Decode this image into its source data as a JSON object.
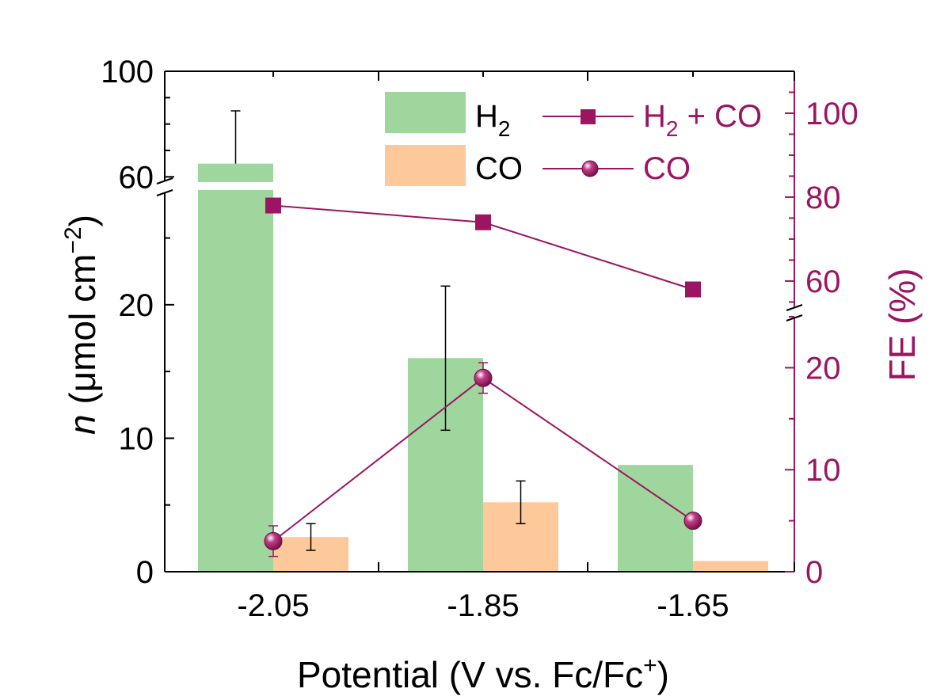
{
  "chart_data": {
    "type": "bar",
    "categories": [
      "-2.05",
      "-1.85",
      "-1.65"
    ],
    "xlabel": "Potential (V vs. Fc/Fc⁺)",
    "ylabel": "n (μmol cm⁻²)",
    "y2label": "FE (%)",
    "ylim": [
      0,
      100
    ],
    "ybreak": [
      28,
      58
    ],
    "y_ticks": [
      "0",
      "10",
      "20",
      "60",
      "100"
    ],
    "y2lim": [
      0,
      110
    ],
    "y2break": [
      25,
      53
    ],
    "y2_ticks": [
      "0",
      "10",
      "20",
      "60",
      "80",
      "100"
    ],
    "bar_series": [
      {
        "name": "H₂",
        "name_base": "H",
        "name_sub": "2",
        "values": [
          65,
          16,
          8
        ],
        "errors_upper": [
          85,
          21.4,
          null
        ],
        "errors_lower": [
          null,
          10.6,
          null
        ]
      },
      {
        "name": "CO",
        "values": [
          2.6,
          5.2,
          0.8
        ],
        "errors_upper": [
          3.6,
          6.8,
          null
        ],
        "errors_lower": [
          1.6,
          3.6,
          null
        ]
      }
    ],
    "line_series": [
      {
        "name": "H₂ + CO",
        "name_parts": [
          "H",
          "2",
          " + CO"
        ],
        "axis": "right",
        "marker": "square",
        "values": [
          78,
          74,
          58
        ]
      },
      {
        "name": "CO",
        "axis": "right",
        "marker": "sphere",
        "values": [
          3,
          19,
          5
        ],
        "errors": [
          1.5,
          1.5,
          null
        ]
      }
    ],
    "colors": {
      "h2_bar": "#9ed69e",
      "co_bar": "#fdc89a",
      "line": "#9c1562",
      "axis": "#000000"
    },
    "legend": "top"
  }
}
